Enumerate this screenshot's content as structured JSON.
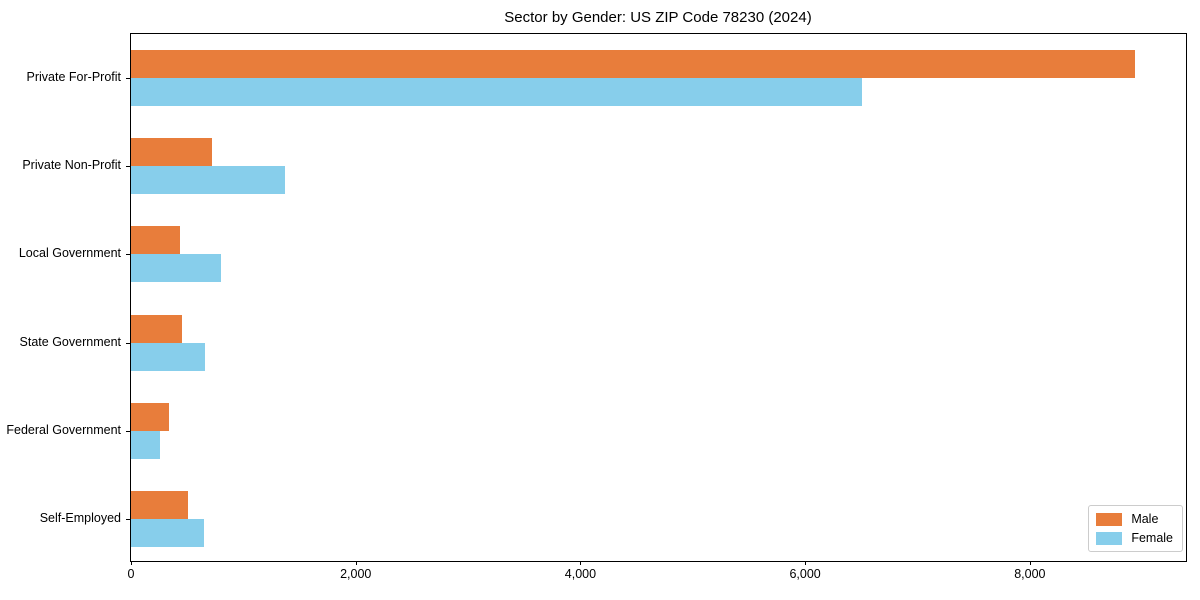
{
  "chart_data": {
    "type": "bar",
    "orientation": "horizontal",
    "title": "Sector by Gender: US ZIP Code 78230 (2024)",
    "categories": [
      "Private For-Profit",
      "Private Non-Profit",
      "Local Government",
      "State Government",
      "Federal Government",
      "Self-Employed"
    ],
    "series": [
      {
        "name": "Male",
        "color": "#e87d3b",
        "values": [
          8940,
          720,
          440,
          450,
          340,
          510
        ]
      },
      {
        "name": "Female",
        "color": "#87ceeb",
        "values": [
          6510,
          1370,
          800,
          660,
          260,
          650
        ]
      }
    ],
    "xlim": [
      0,
      9390
    ],
    "x_ticks": [
      0,
      2000,
      4000,
      6000,
      8000
    ],
    "x_tick_labels": [
      "0",
      "2,000",
      "4,000",
      "6,000",
      "8,000"
    ],
    "xlabel": "",
    "ylabel": "",
    "grid": false,
    "legend_position": "lower right",
    "text_color": "#000000",
    "spine_color": "#000000"
  }
}
